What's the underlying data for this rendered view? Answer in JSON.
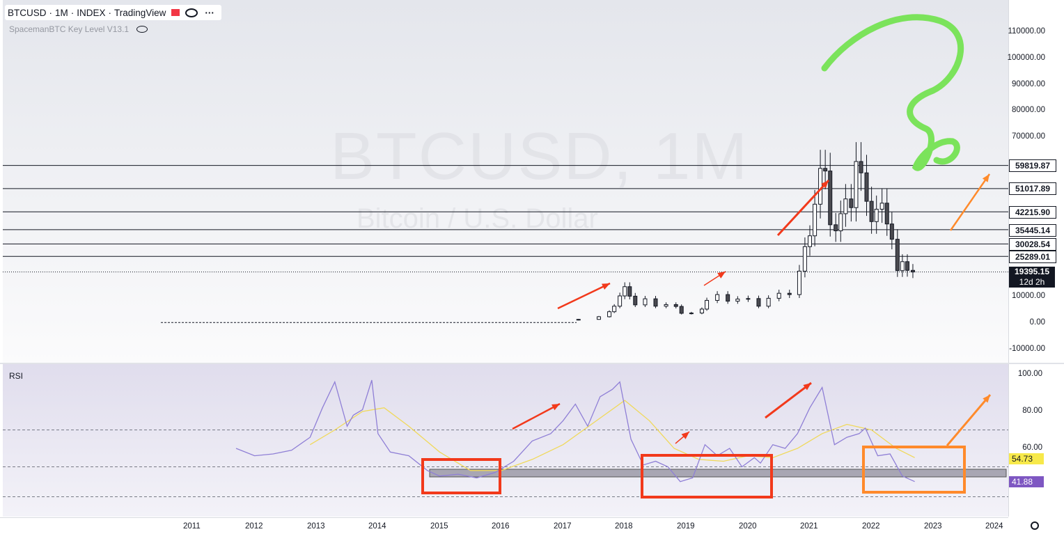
{
  "legend": {
    "symbol": "BTCUSD",
    "interval": "1M",
    "exchange": "INDEX",
    "source": "TradingView",
    "sep": "·"
  },
  "indicator": {
    "name": "SpacemanBTC Key Level V13.1"
  },
  "rsi_title": "RSI",
  "watermark": {
    "main": "BTCUSD, 1M",
    "sub": "Bitcoin / U.S. Dollar"
  },
  "colors": {
    "up": "#ffffff",
    "down": "#4a4a50",
    "rsi": "#8f7fd6",
    "rsi_ma": "#f0d95a",
    "red": "#f2391b",
    "orange": "#ff8a2b",
    "green": "#7be35b"
  },
  "price_axis": [
    "110000.00",
    "100000.00",
    "90000.00",
    "80000.00",
    "70000.00",
    "10000.00",
    "0.00",
    "-10000.00"
  ],
  "rsi_axis": [
    "100.00",
    "80.00",
    "60.00"
  ],
  "time_axis": [
    "2011",
    "2012",
    "2013",
    "2014",
    "2015",
    "2016",
    "2017",
    "2018",
    "2019",
    "2020",
    "2021",
    "2022",
    "2023",
    "2024"
  ],
  "key_levels": [
    "59819.87",
    "51017.89",
    "42215.90",
    "35445.14",
    "30028.54",
    "25289.01"
  ],
  "last_price": {
    "value": "19395.15",
    "countdown": "12d 2h"
  },
  "rsi_values": {
    "rsi": "41.88",
    "rsi_ma": "54.73"
  },
  "icons": [
    "eye-icon",
    "more-icon",
    "visibility-off-icon",
    "gear-icon",
    "flag-icon"
  ],
  "chart_data": [
    {
      "type": "candlestick",
      "title": "BTCUSD, 1M",
      "series": [
        {
          "name": "BTCUSD",
          "values": [
            [
              2017.25,
              1400
            ],
            [
              2017.58,
              2400
            ],
            [
              2017.75,
              4300
            ],
            [
              2017.83,
              6400
            ],
            [
              2017.92,
              10300
            ],
            [
              2018.0,
              13800
            ],
            [
              2018.08,
              10200
            ],
            [
              2018.17,
              6900
            ],
            [
              2018.33,
              9200
            ],
            [
              2018.5,
              6400
            ],
            [
              2018.67,
              7000
            ],
            [
              2018.83,
              6300
            ],
            [
              2018.92,
              3700
            ],
            [
              2019.08,
              3800
            ],
            [
              2019.25,
              5300
            ],
            [
              2019.33,
              8600
            ],
            [
              2019.5,
              10800
            ],
            [
              2019.67,
              8300
            ],
            [
              2019.83,
              9100
            ],
            [
              2020.0,
              9300
            ],
            [
              2020.17,
              6400
            ],
            [
              2020.33,
              9400
            ],
            [
              2020.5,
              11300
            ],
            [
              2020.67,
              10800
            ],
            [
              2020.83,
              19700
            ],
            [
              2020.92,
              29000
            ],
            [
              2021.0,
              33100
            ],
            [
              2021.08,
              45100
            ],
            [
              2021.17,
              58700
            ],
            [
              2021.25,
              57700
            ],
            [
              2021.33,
              37300
            ],
            [
              2021.42,
              35000
            ],
            [
              2021.5,
              41500
            ],
            [
              2021.58,
              47100
            ],
            [
              2021.67,
              43800
            ],
            [
              2021.75,
              61300
            ],
            [
              2021.83,
              57000
            ],
            [
              2021.92,
              46200
            ],
            [
              2022.0,
              38500
            ],
            [
              2022.08,
              43200
            ],
            [
              2022.17,
              45500
            ],
            [
              2022.25,
              37600
            ],
            [
              2022.33,
              31800
            ],
            [
              2022.42,
              19900
            ],
            [
              2022.5,
              23300
            ],
            [
              2022.58,
              20000
            ],
            [
              2022.67,
              19395
            ]
          ]
        }
      ],
      "key_levels": [
        59819.87,
        51017.89,
        42215.9,
        35445.14,
        30028.54,
        25289.01
      ],
      "last": 19395.15,
      "ylim": [
        -10000,
        110000
      ]
    },
    {
      "type": "line",
      "title": "RSI",
      "series": [
        {
          "name": "RSI",
          "x": [
            2011.7,
            2012.0,
            2012.3,
            2012.6,
            2012.9,
            2013.1,
            2013.3,
            2013.5,
            2013.6,
            2013.75,
            2013.9,
            2014.0,
            2014.2,
            2014.5,
            2014.8,
            2015.0,
            2015.3,
            2015.6,
            2015.9,
            2016.2,
            2016.5,
            2016.8,
            2017.0,
            2017.2,
            2017.4,
            2017.6,
            2017.8,
            2017.92,
            2018.1,
            2018.3,
            2018.5,
            2018.7,
            2018.9,
            2019.1,
            2019.3,
            2019.5,
            2019.7,
            2019.9,
            2020.1,
            2020.2,
            2020.4,
            2020.6,
            2020.8,
            2021.0,
            2021.2,
            2021.4,
            2021.6,
            2021.8,
            2021.9,
            2022.1,
            2022.3,
            2022.5,
            2022.7
          ],
          "values": [
            60,
            56,
            57,
            59,
            66,
            82,
            96,
            72,
            78,
            81,
            97,
            68,
            58,
            56,
            48,
            45,
            46,
            44,
            47,
            53,
            64,
            68,
            75,
            84,
            72,
            88,
            92,
            96,
            65,
            51,
            53,
            50,
            42,
            44,
            62,
            56,
            60,
            50,
            55,
            52,
            62,
            60,
            68,
            82,
            93,
            62,
            66,
            68,
            71,
            56,
            57,
            45,
            42
          ]
        },
        {
          "name": "RSI MA",
          "x": [
            2012.9,
            2013.3,
            2013.75,
            2014.1,
            2014.5,
            2015.0,
            2015.5,
            2016.0,
            2016.5,
            2017.0,
            2017.5,
            2018.0,
            2018.4,
            2018.8,
            2019.2,
            2019.6,
            2020.0,
            2020.4,
            2020.8,
            2021.2,
            2021.6,
            2022.0,
            2022.4,
            2022.7
          ],
          "values": [
            62,
            70,
            80,
            82,
            72,
            58,
            48,
            48,
            54,
            62,
            74,
            86,
            75,
            60,
            54,
            53,
            56,
            55,
            60,
            68,
            73,
            70,
            60,
            55
          ]
        }
      ],
      "ylim": [
        30,
        100
      ]
    }
  ]
}
